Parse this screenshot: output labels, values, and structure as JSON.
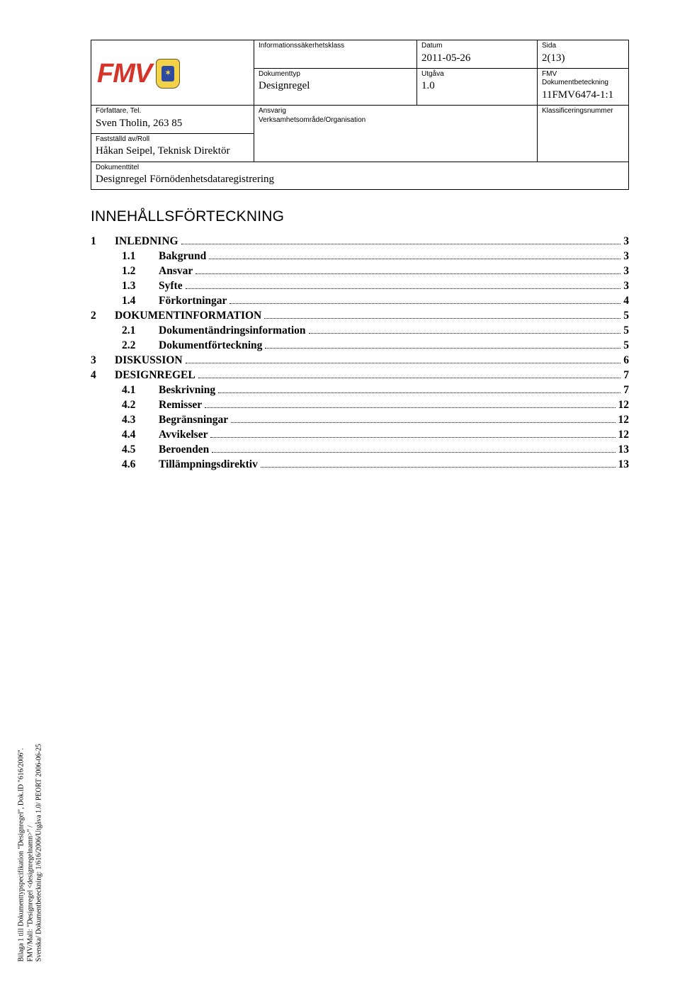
{
  "header": {
    "labels": {
      "infoclass": "Informationssäkerhetsklass",
      "datum": "Datum",
      "sida": "Sida",
      "dokumenttyp": "Dokumenttyp",
      "utgava": "Utgåva",
      "fmvbet": "FMV Dokumentbeteckning",
      "forfattare": "Författare, Tel.",
      "ansvarig": "Ansvarig\nVerksamhetsområde/Organisation",
      "klass": "Klassificeringsnummer",
      "faststalld": "Fastställd av/Roll",
      "dokumenttitel": "Dokumenttitel"
    },
    "values": {
      "infoclass": "",
      "datum": "2011-05-26",
      "sida": "2(13)",
      "dokumenttyp": "Designregel",
      "utgava": "1.0",
      "fmvbet": "11FMV6474-1:1",
      "forfattare": "Sven Tholin, 263 85",
      "ansvarig": "",
      "klass": "",
      "faststalld": "Håkan Seipel, Teknisk Direktör",
      "dokumenttitel": "Designregel Förnödenhetsdataregistrering"
    },
    "logo_text": "FMV",
    "logo_color": "#d4342a",
    "crest_bg": "#f3d24a",
    "crest_inner": "#2b4aa0"
  },
  "toc": {
    "title": "INNEHÅLLSFÖRTECKNING",
    "items": [
      {
        "level": 1,
        "num": "1",
        "label": "INLEDNING",
        "page": "3"
      },
      {
        "level": 2,
        "num": "1.1",
        "label": "Bakgrund",
        "page": "3"
      },
      {
        "level": 2,
        "num": "1.2",
        "label": "Ansvar",
        "page": "3"
      },
      {
        "level": 2,
        "num": "1.3",
        "label": "Syfte",
        "page": "3"
      },
      {
        "level": 2,
        "num": "1.4",
        "label": "Förkortningar",
        "page": "4"
      },
      {
        "level": 1,
        "num": "2",
        "label": "DOKUMENTINFORMATION",
        "page": "5"
      },
      {
        "level": 2,
        "num": "2.1",
        "label": "Dokumentändringsinformation",
        "page": "5"
      },
      {
        "level": 2,
        "num": "2.2",
        "label": "Dokumentförteckning",
        "page": "5"
      },
      {
        "level": 1,
        "num": "3",
        "label": "DISKUSSION",
        "page": "6"
      },
      {
        "level": 1,
        "num": "4",
        "label": "DESIGNREGEL",
        "page": "7"
      },
      {
        "level": 2,
        "num": "4.1",
        "label": "Beskrivning",
        "page": "7"
      },
      {
        "level": 2,
        "num": "4.2",
        "label": "Remisser",
        "page": "12"
      },
      {
        "level": 2,
        "num": "4.3",
        "label": "Begränsningar",
        "page": "12"
      },
      {
        "level": 2,
        "num": "4.4",
        "label": "Avvikelser",
        "page": "12"
      },
      {
        "level": 2,
        "num": "4.5",
        "label": "Beroenden",
        "page": "13"
      },
      {
        "level": 2,
        "num": "4.6",
        "label": "Tillämpningsdirektiv",
        "page": "13"
      }
    ]
  },
  "sidecredit": {
    "line1": "Bilaga 1 till Dokumenttypspecifikation \"Designregel\", Dok.ID \"616/2006\".",
    "line2": "FMV/Mall: \"Designregel <designregelnamn>\" /",
    "line3": "Svenska/ Dokumentbeteckning: 1/616/2006/Utgåva  1.0/ PEORT 2006-06-25"
  },
  "style": {
    "page_bg": "#ffffff",
    "text_color": "#000000",
    "border_color": "#000000",
    "toc_title_fontsize": 21,
    "toc_body_fontsize": 15.5,
    "header_label_fontsize": 10,
    "header_value_fontsize": 15
  }
}
